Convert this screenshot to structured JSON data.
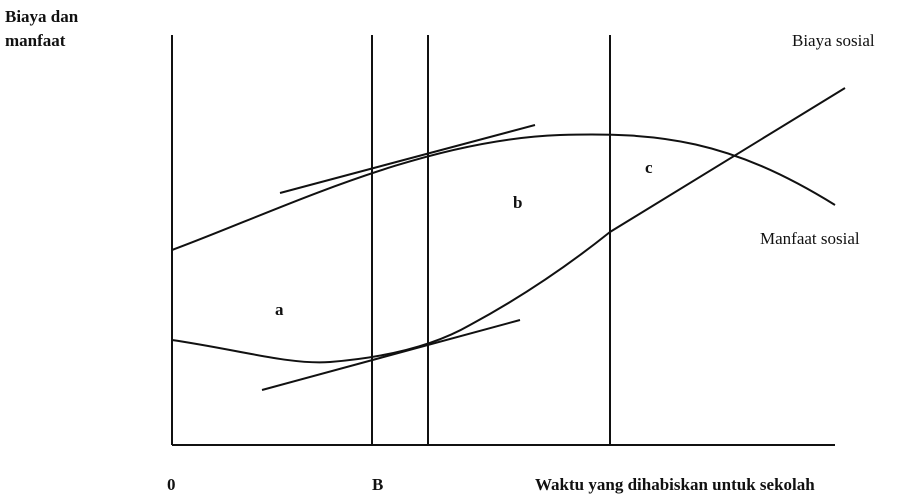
{
  "y_axis_label": [
    "Biaya dan",
    "manfaat"
  ],
  "curves": {
    "cost": "Biaya sosial",
    "benefit": "Manfaat sosial"
  },
  "areas": [
    "a",
    "b",
    "c"
  ],
  "x_axis": {
    "origin": "0",
    "point": "B",
    "label": "Waktu yang dihabiskan untuk sekolah"
  }
}
